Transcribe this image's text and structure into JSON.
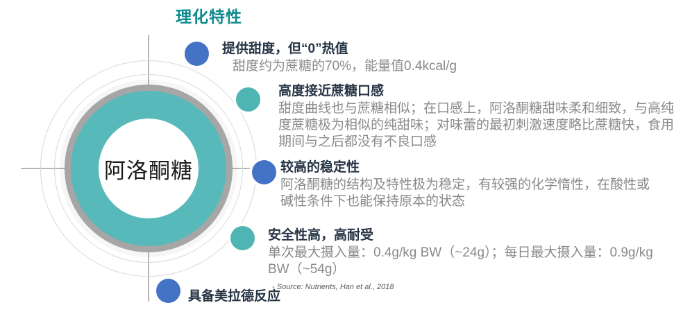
{
  "slide": {
    "title": "理化特性",
    "center": {
      "label": "阿洛酮糖"
    },
    "features": [
      {
        "heading": "提供甜度，但“0”热值",
        "body": "甜度约为蔗糖的70%，能量值0.4kcal/g",
        "dot": "blue"
      },
      {
        "heading": "高度接近蔗糖口感",
        "body": "甜度曲线也与蔗糖相似；在口感上，阿洛酮糖甜味柔和细致，与高纯\n度蔗糖极为相似的纯甜味；对味蕾的最初刺激速度略比蔗糖快，食用\n期间与之后都没有不良口感",
        "dot": "teal"
      },
      {
        "heading": "较高的稳定性",
        "body": "阿洛酮糖的结构及特性极为稳定，有较强的化学惰性，在酸性或\n碱性条件下也能保持原本的状态",
        "dot": "blue"
      },
      {
        "heading": "安全性高，高耐受",
        "body": "单次最大摄入量：0.4g/kg BW（~24g）；每日最大摄入量：0.9g/kg\nBW（~54g）",
        "source": "- Source: Nutrients, Han et al., 2018",
        "dot": "teal"
      },
      {
        "heading": "具备美拉德反应",
        "dot": "blue"
      }
    ],
    "colors": {
      "title": "#0e8a8e",
      "heading": "#263445",
      "body_text": "#8a8a8a",
      "source_text": "#595959",
      "teal_ring": "#57b9b9",
      "gray_ring": "#a6a6a6",
      "inner_text": "#1a1a1a",
      "blue_dot": "#4472c4",
      "teal_dot": "#4fb5b3",
      "orbit_line": "#d8d8d8",
      "axis_line": "#b5b5b5"
    }
  }
}
